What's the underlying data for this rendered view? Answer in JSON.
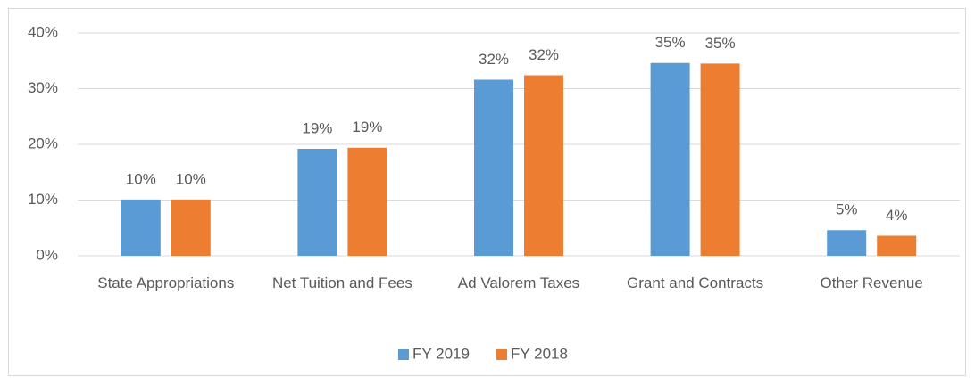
{
  "chart_data": {
    "type": "bar",
    "categories": [
      "State Appropriations",
      "Net Tuition and Fees",
      "Ad Valorem Taxes",
      "Grant and Contracts",
      "Other Revenue"
    ],
    "series": [
      {
        "name": "FY 2019",
        "color": "#5b9bd5",
        "values": [
          10.1,
          19.2,
          31.6,
          34.6,
          4.6
        ],
        "value_labels": [
          "10%",
          "19%",
          "32%",
          "35%",
          "5%"
        ]
      },
      {
        "name": "FY 2018",
        "color": "#ed7d31",
        "values": [
          10.1,
          19.4,
          32.4,
          34.5,
          3.6
        ],
        "value_labels": [
          "10%",
          "19%",
          "32%",
          "35%",
          "4%"
        ]
      }
    ],
    "ylim": [
      0,
      40
    ],
    "yticks": [
      {
        "value": 0,
        "label": "0%"
      },
      {
        "value": 10,
        "label": "10%"
      },
      {
        "value": 20,
        "label": "20%"
      },
      {
        "value": 30,
        "label": "30%"
      },
      {
        "value": 40,
        "label": "40%"
      }
    ],
    "grid": true,
    "legend": "bottom"
  }
}
